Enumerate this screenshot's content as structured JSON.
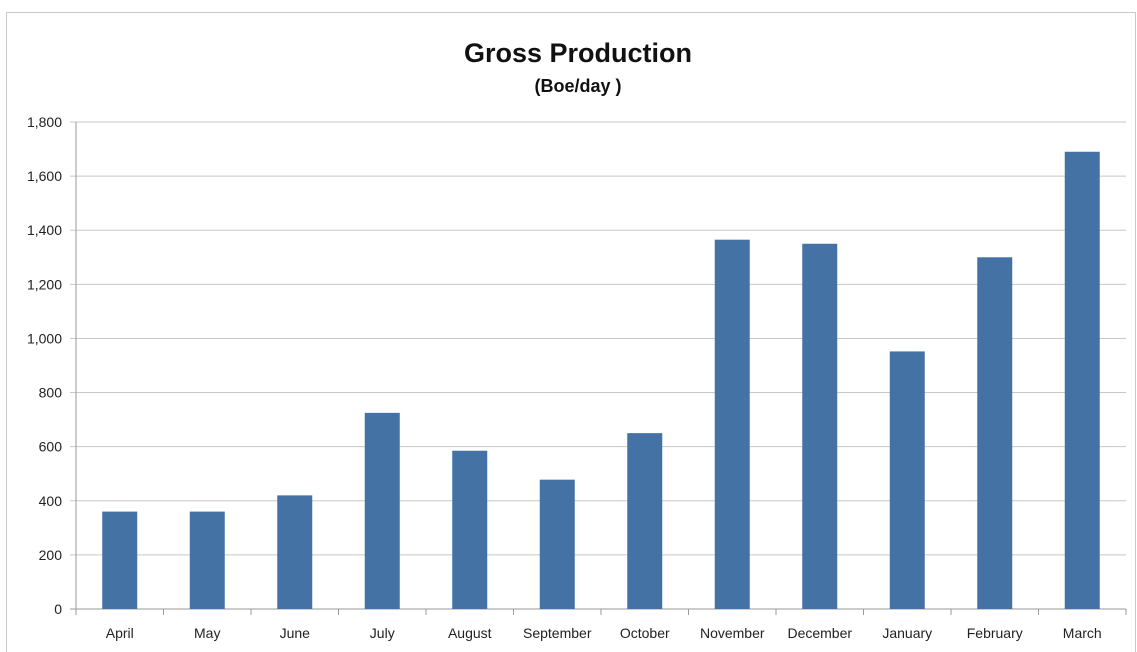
{
  "chart_data": {
    "type": "bar",
    "title": "Gross Production",
    "subtitle": "(Boe/day )",
    "xlabel": "",
    "ylabel": "",
    "categories": [
      "April",
      "May",
      "June",
      "July",
      "August",
      "September",
      "October",
      "November",
      "December",
      "January",
      "February",
      "March"
    ],
    "values": [
      360,
      360,
      420,
      725,
      585,
      478,
      650,
      1365,
      1350,
      952,
      1300,
      1690
    ],
    "ylim": [
      0,
      1800
    ],
    "yticks": [
      0,
      200,
      400,
      600,
      800,
      1000,
      1200,
      1400,
      1600,
      1800
    ],
    "ytick_labels": [
      "0",
      "200",
      "400",
      "600",
      "800",
      "1,000",
      "1,200",
      "1,400",
      "1,600",
      "1,800"
    ],
    "grid": true,
    "legend": "none",
    "bar_color": "#4472a4"
  }
}
